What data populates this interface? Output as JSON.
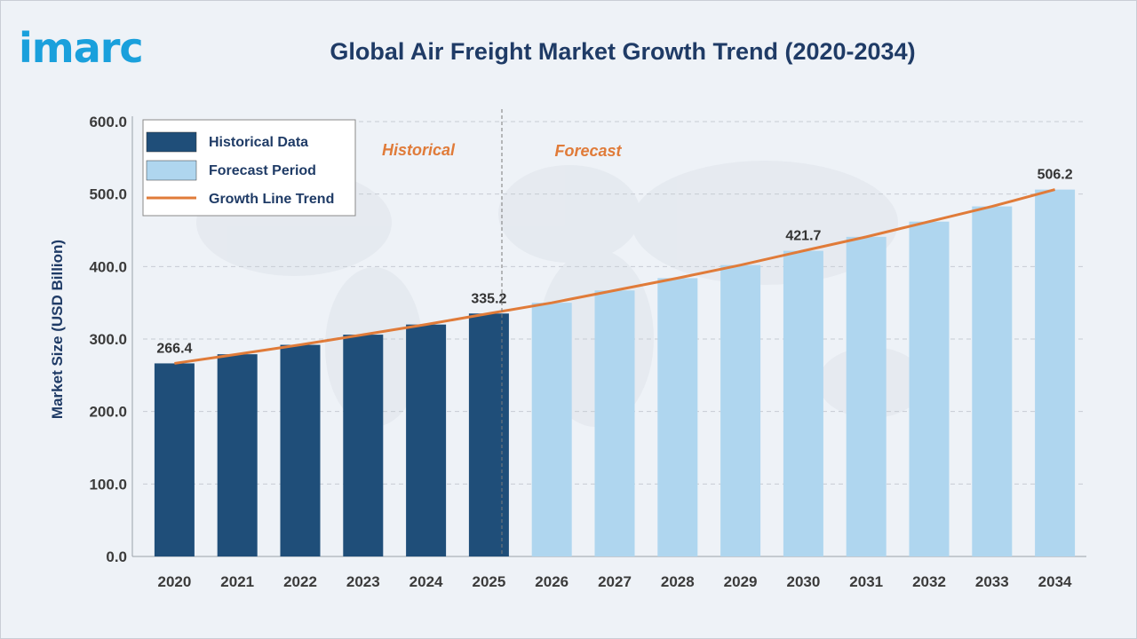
{
  "brand": {
    "logo_text": "imarc"
  },
  "colors": {
    "historical": "#1f4e79",
    "forecast": "#afd6ef",
    "trend": "#e07b39",
    "title": "#1f3b66"
  },
  "chart_data": {
    "type": "bar",
    "title": "Global Air Freight Market Growth Trend (2020-2034)",
    "ylabel": "Market Size (USD Billion)",
    "xlabel": "",
    "ylim": [
      0,
      600
    ],
    "yticks": [
      "0.0",
      "100.0",
      "200.0",
      "300.0",
      "400.0",
      "500.0",
      "600.0"
    ],
    "grid": true,
    "legend_position": "top-left",
    "categories": [
      "2020",
      "2021",
      "2022",
      "2023",
      "2024",
      "2025",
      "2026",
      "2027",
      "2028",
      "2029",
      "2030",
      "2031",
      "2032",
      "2033",
      "2034"
    ],
    "series": [
      {
        "name": "Historical Data",
        "values": [
          266.4,
          279,
          292,
          306,
          320,
          335.2,
          null,
          null,
          null,
          null,
          null,
          null,
          null,
          null,
          null
        ]
      },
      {
        "name": "Forecast Period",
        "values": [
          null,
          null,
          null,
          null,
          null,
          null,
          350,
          367,
          384,
          402,
          421.7,
          441,
          462,
          483,
          506.2
        ]
      },
      {
        "name": "Growth Line Trend",
        "type": "line",
        "values": [
          266.4,
          279,
          292,
          306,
          320,
          335.2,
          350,
          367,
          384,
          402,
          421.7,
          441,
          462,
          483,
          506.2
        ]
      }
    ],
    "data_labels": [
      {
        "category": "2020",
        "text": "266.4"
      },
      {
        "category": "2025",
        "text": "335.2"
      },
      {
        "category": "2030",
        "text": "421.7"
      },
      {
        "category": "2034",
        "text": "506.2"
      }
    ],
    "regions": {
      "historical": "Historical",
      "forecast": "Forecast"
    }
  }
}
